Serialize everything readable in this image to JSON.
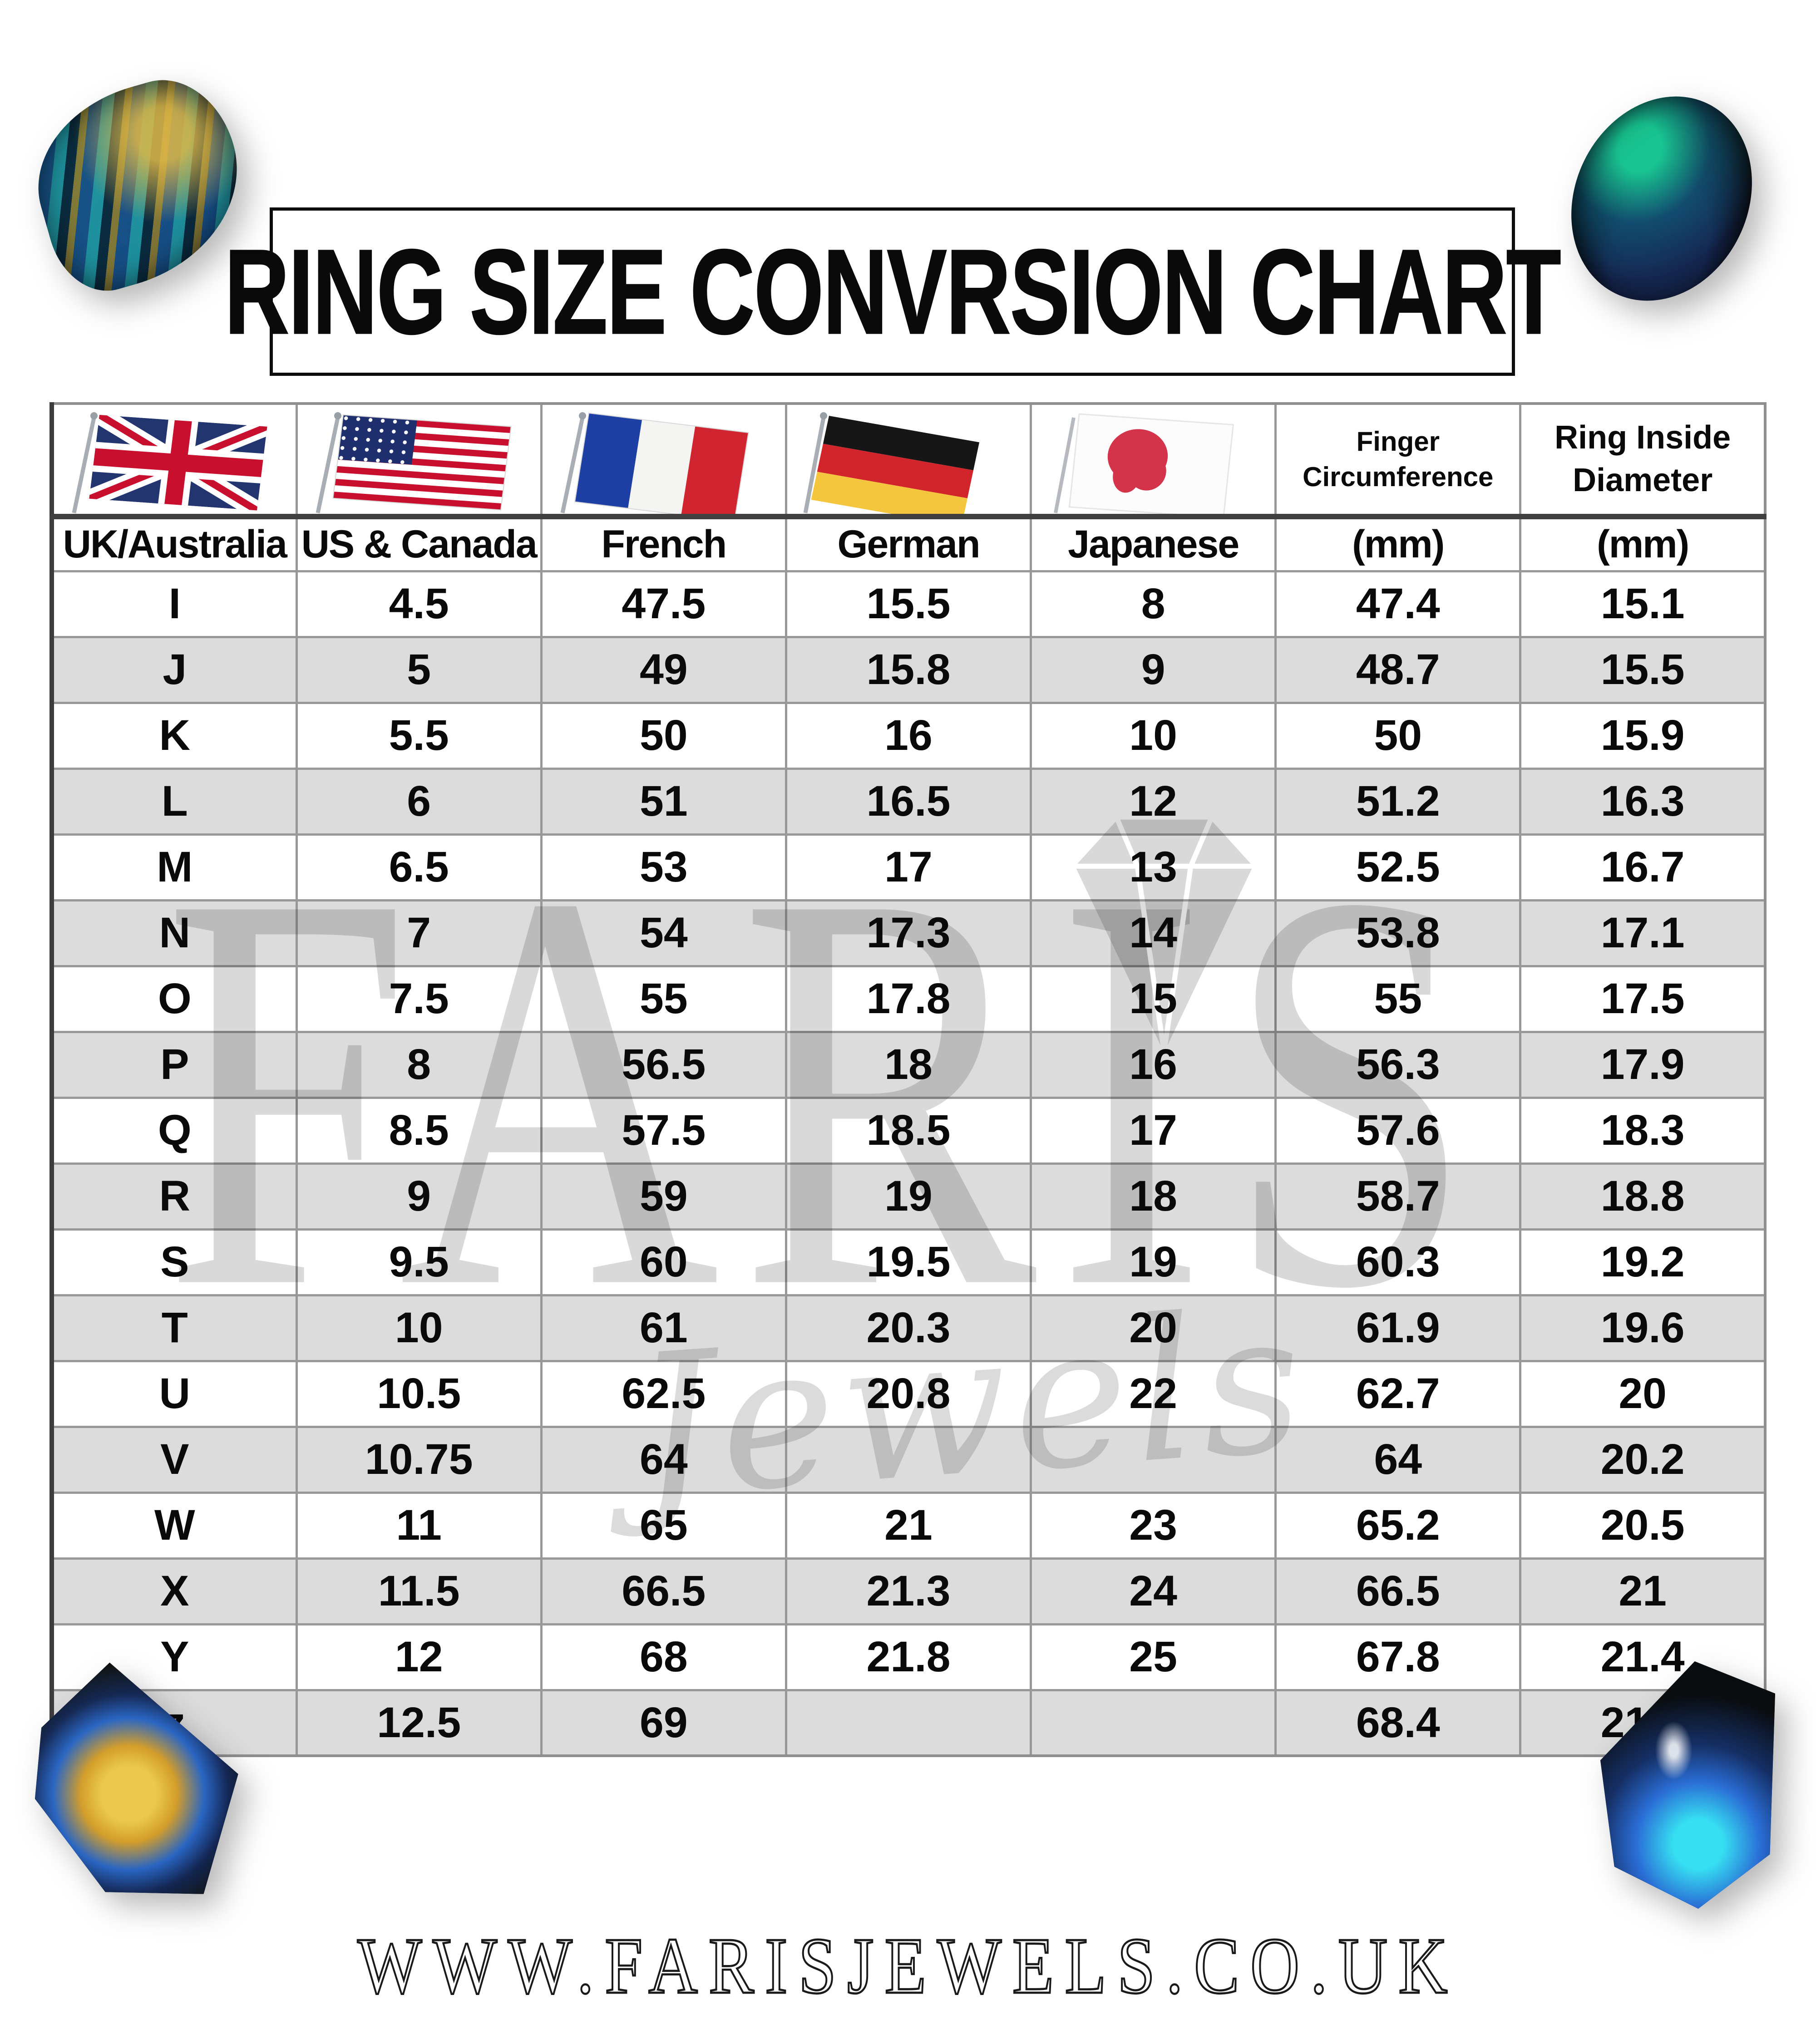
{
  "title": "RING SIZE CONVRSION CHART",
  "website_url": "WWW.FARISJEWELS.CO.UK",
  "watermark": {
    "brand": "FARIS",
    "script": "Jewels"
  },
  "colors": {
    "row_alt_gray": "#dcdcdc",
    "grid_line": "#989898",
    "heavy_line": "#3d3d3d",
    "text": "#0a0a0a",
    "uk_flag_blue": "#23356f",
    "flag_red": "#c8102e",
    "us_navy": "#1f2f6e",
    "france_blue": "#1e3fa3",
    "france_red": "#d02431",
    "germany_black": "#161616",
    "germany_red": "#d2252b",
    "germany_gold": "#f3c63e",
    "japan_red": "#d4344a"
  },
  "header": {
    "flags": [
      {
        "icon": "uk-flag-icon",
        "label": "UK/Australia"
      },
      {
        "icon": "us-flag-icon",
        "label": "US & Canada"
      },
      {
        "icon": "france-flag-icon",
        "label": "French"
      },
      {
        "icon": "germany-flag-icon",
        "label": "German"
      },
      {
        "icon": "japan-flag-icon",
        "label": "Japanese"
      }
    ],
    "finger_circumference": "Finger Circumference",
    "ring_inside_diameter": "Ring Inside Diameter",
    "unit_mm_1": "(mm)",
    "unit_mm_2": "(mm)"
  },
  "chart_data": {
    "type": "table",
    "title": "RING SIZE CONVRSION CHART",
    "columns": [
      "UK/Australia",
      "US & Canada",
      "French",
      "German",
      "Japanese",
      "Finger Circumference (mm)",
      "Ring Inside Diameter (mm)"
    ],
    "rows": [
      [
        "I",
        "4.5",
        "47.5",
        "15.5",
        "8",
        "47.4",
        "15.1"
      ],
      [
        "J",
        "5",
        "49",
        "15.8",
        "9",
        "48.7",
        "15.5"
      ],
      [
        "K",
        "5.5",
        "50",
        "16",
        "10",
        "50",
        "15.9"
      ],
      [
        "L",
        "6",
        "51",
        "16.5",
        "12",
        "51.2",
        "16.3"
      ],
      [
        "M",
        "6.5",
        "53",
        "17",
        "13",
        "52.5",
        "16.7"
      ],
      [
        "N",
        "7",
        "54",
        "17.3",
        "14",
        "53.8",
        "17.1"
      ],
      [
        "O",
        "7.5",
        "55",
        "17.8",
        "15",
        "55",
        "17.5"
      ],
      [
        "P",
        "8",
        "56.5",
        "18",
        "16",
        "56.3",
        "17.9"
      ],
      [
        "Q",
        "8.5",
        "57.5",
        "18.5",
        "17",
        "57.6",
        "18.3"
      ],
      [
        "R",
        "9",
        "59",
        "19",
        "18",
        "58.7",
        "18.8"
      ],
      [
        "S",
        "9.5",
        "60",
        "19.5",
        "19",
        "60.3",
        "19.2"
      ],
      [
        "T",
        "10",
        "61",
        "20.3",
        "20",
        "61.9",
        "19.6"
      ],
      [
        "U",
        "10.5",
        "62.5",
        "20.8",
        "22",
        "62.7",
        "20"
      ],
      [
        "V",
        "10.75",
        "64",
        "",
        "",
        "64",
        "20.2"
      ],
      [
        "W",
        "11",
        "65",
        "21",
        "23",
        "65.2",
        "20.5"
      ],
      [
        "X",
        "11.5",
        "66.5",
        "21.3",
        "24",
        "66.5",
        "21"
      ],
      [
        "Y",
        "12",
        "68",
        "21.8",
        "25",
        "67.8",
        "21.4"
      ],
      [
        "z",
        "12.5",
        "69",
        "",
        "",
        "68.4",
        "21.8"
      ]
    ]
  },
  "decorations": {
    "gemstones": [
      "labradorite-gem-top-left",
      "labradorite-gem-top-right",
      "labradorite-gem-bottom-left",
      "labradorite-gem-bottom-right"
    ]
  }
}
